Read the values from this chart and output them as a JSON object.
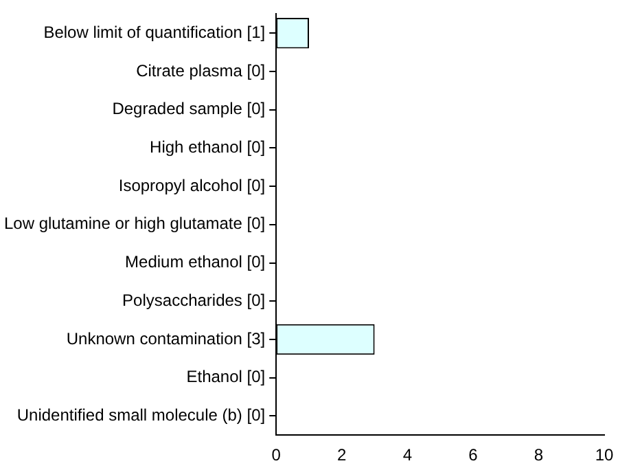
{
  "chart_data": {
    "type": "bar",
    "orientation": "horizontal",
    "categories": [
      "Below limit of quantification [1]",
      "Citrate plasma [0]",
      "Degraded sample [0]",
      "High ethanol [0]",
      "Isopropyl alcohol [0]",
      "Low glutamine or high glutamate [0]",
      "Medium ethanol [0]",
      "Polysaccharides [0]",
      "Unknown contamination [3]",
      "Ethanol [0]",
      "Unidentified small molecule (b) [0]"
    ],
    "values": [
      1,
      0,
      0,
      0,
      0,
      0,
      0,
      0,
      3,
      0,
      0
    ],
    "color": "#ddffff",
    "xlim": [
      0,
      10
    ],
    "xticks": [
      0,
      2,
      4,
      6,
      8,
      10
    ],
    "grid": false,
    "legend": false
  }
}
